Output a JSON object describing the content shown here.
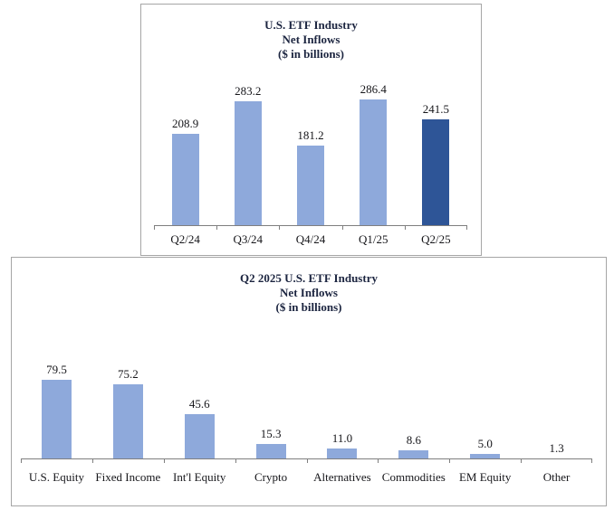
{
  "colors": {
    "bar_light_blue": "#8EA9DB",
    "bar_dark_blue": "#2E5597",
    "box_border": "#A6A6A6",
    "axis_line": "#7F7F7F",
    "title_text": "#1C2540",
    "label_text": "#16161A",
    "background": "#FFFFFF"
  },
  "chart_data": [
    {
      "type": "bar",
      "title": "U.S. ETF Industry Net Inflows ($ in billions)",
      "title_lines": [
        "U.S. ETF Industry",
        "Net Inflows",
        "($ in billions)"
      ],
      "categories": [
        "Q2/24",
        "Q3/24",
        "Q4/24",
        "Q1/25",
        "Q2/25"
      ],
      "values": [
        208.9,
        283.2,
        181.2,
        286.4,
        241.5
      ],
      "data_labels": [
        "208.9",
        "283.2",
        "181.2",
        "286.4",
        "241.5"
      ],
      "bar_colors": [
        "#8EA9DB",
        "#8EA9DB",
        "#8EA9DB",
        "#8EA9DB",
        "#2E5597"
      ],
      "highlight_index": 4,
      "xlabel": "",
      "ylabel": "",
      "ylim": [
        0,
        300
      ],
      "grid": false,
      "legend": false,
      "data_labels_shown": true,
      "y_axis_shown": false
    },
    {
      "type": "bar",
      "title": "Q2 2025 U.S. ETF Industry Net Inflows ($ in billions)",
      "title_lines": [
        "Q2 2025 U.S. ETF Industry",
        "Net Inflows",
        "($ in billions)"
      ],
      "categories": [
        "U.S. Equity",
        "Fixed Income",
        "Int'l Equity",
        "Crypto",
        "Alternatives",
        "Commodities",
        "EM Equity",
        "Other"
      ],
      "values": [
        79.5,
        75.2,
        45.6,
        15.3,
        11.0,
        8.6,
        5.0,
        1.3
      ],
      "data_labels": [
        "79.5",
        "75.2",
        "45.6",
        "15.3",
        "11.0",
        "8.6",
        "5.0",
        "1.3"
      ],
      "bar_colors": [
        "#8EA9DB",
        "#8EA9DB",
        "#8EA9DB",
        "#8EA9DB",
        "#8EA9DB",
        "#8EA9DB",
        "#8EA9DB",
        "#8EA9DB"
      ],
      "highlight_index": null,
      "xlabel": "",
      "ylabel": "",
      "ylim": [
        0,
        90
      ],
      "grid": false,
      "legend": false,
      "data_labels_shown": true,
      "y_axis_shown": false
    }
  ]
}
